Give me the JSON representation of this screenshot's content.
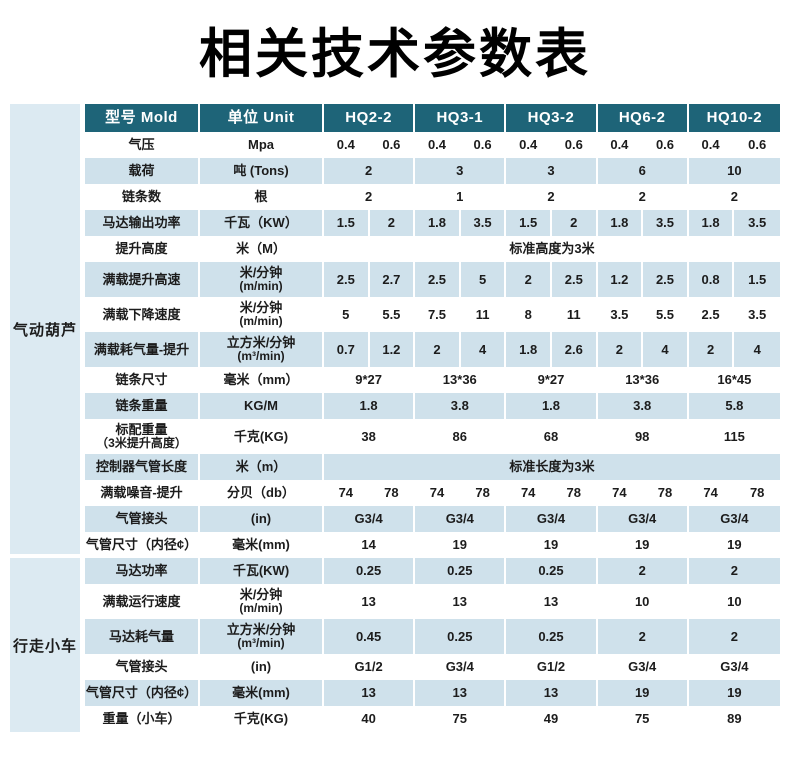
{
  "title": "相关技术参数表",
  "colors": {
    "header_bg": "#1e6478",
    "stripe_bg": "#cfe1eb",
    "sidebar_bg": "#dceaf2",
    "header_text": "#ffffff",
    "text": "#1c1c1c"
  },
  "header": {
    "model_col": "型号 Mold",
    "unit_col": "单位 Unit",
    "models": [
      "HQ2-2",
      "HQ3-1",
      "HQ3-2",
      "HQ6-2",
      "HQ10-2"
    ]
  },
  "sections": [
    {
      "name": "气动葫芦",
      "rows": [
        {
          "label": "气压",
          "unit": "Mpa",
          "type": "split",
          "values": [
            [
              "0.4",
              "0.6"
            ],
            [
              "0.4",
              "0.6"
            ],
            [
              "0.4",
              "0.6"
            ],
            [
              "0.4",
              "0.6"
            ],
            [
              "0.4",
              "0.6"
            ]
          ]
        },
        {
          "label": "载荷",
          "unit": "吨 (Tons)",
          "type": "single",
          "values": [
            "2",
            "3",
            "3",
            "6",
            "10"
          ]
        },
        {
          "label": "链条数",
          "unit": "根",
          "type": "single",
          "values": [
            "2",
            "1",
            "2",
            "2",
            "2"
          ]
        },
        {
          "label": "马达输出功率",
          "unit": "千瓦（KW）",
          "type": "split",
          "values": [
            [
              "1.5",
              "2"
            ],
            [
              "1.8",
              "3.5"
            ],
            [
              "1.5",
              "2"
            ],
            [
              "1.8",
              "3.5"
            ],
            [
              "1.8",
              "3.5"
            ]
          ]
        },
        {
          "label": "提升高度",
          "unit": "米（M）",
          "type": "span",
          "span_text": "标准高度为3米"
        },
        {
          "label": "满载提升高速",
          "unit": "米/分钟",
          "unit2": "(m/min)",
          "tall": true,
          "type": "split",
          "values": [
            [
              "2.5",
              "2.7"
            ],
            [
              "2.5",
              "5"
            ],
            [
              "2",
              "2.5"
            ],
            [
              "1.2",
              "2.5"
            ],
            [
              "0.8",
              "1.5"
            ]
          ]
        },
        {
          "label": "满载下降速度",
          "unit": "米/分钟",
          "unit2": "(m/min)",
          "tall": true,
          "type": "split",
          "values": [
            [
              "5",
              "5.5"
            ],
            [
              "7.5",
              "11"
            ],
            [
              "8",
              "11"
            ],
            [
              "3.5",
              "5.5"
            ],
            [
              "2.5",
              "3.5"
            ]
          ]
        },
        {
          "label": "满载耗气量-提升",
          "unit": "立方米/分钟",
          "unit2": "(m³/min)",
          "tall": true,
          "type": "split",
          "values": [
            [
              "0.7",
              "1.2"
            ],
            [
              "2",
              "4"
            ],
            [
              "1.8",
              "2.6"
            ],
            [
              "2",
              "4"
            ],
            [
              "2",
              "4"
            ]
          ]
        },
        {
          "label": "链条尺寸",
          "unit": "毫米（mm）",
          "type": "single",
          "values": [
            "9*27",
            "13*36",
            "9*27",
            "13*36",
            "16*45"
          ]
        },
        {
          "label": "链条重量",
          "unit": "KG/M",
          "type": "single",
          "values": [
            "1.8",
            "3.8",
            "1.8",
            "3.8",
            "5.8"
          ]
        },
        {
          "label": "标配重量",
          "label2": "（3米提升高度）",
          "unit": "千克(KG)",
          "tall": true,
          "type": "single",
          "values": [
            "38",
            "86",
            "68",
            "98",
            "115"
          ]
        },
        {
          "label": "控制器气管长度",
          "unit": "米（m）",
          "type": "span",
          "span_text": "标准长度为3米"
        },
        {
          "label": "满载噪音-提升",
          "unit": "分贝（db）",
          "type": "split",
          "values": [
            [
              "74",
              "78"
            ],
            [
              "74",
              "78"
            ],
            [
              "74",
              "78"
            ],
            [
              "74",
              "78"
            ],
            [
              "74",
              "78"
            ]
          ]
        },
        {
          "label": "气管接头",
          "unit": "(in)",
          "type": "single",
          "values": [
            "G3/4",
            "G3/4",
            "G3/4",
            "G3/4",
            "G3/4"
          ]
        },
        {
          "label": "气管尺寸（内径¢）",
          "unit": "毫米(mm)",
          "type": "single",
          "values": [
            "14",
            "19",
            "19",
            "19",
            "19"
          ]
        }
      ]
    },
    {
      "name": "行走小车",
      "rows": [
        {
          "label": "马达功率",
          "unit": "千瓦(KW)",
          "type": "single",
          "values": [
            "0.25",
            "0.25",
            "0.25",
            "2",
            "2"
          ]
        },
        {
          "label": "满载运行速度",
          "unit": "米/分钟",
          "unit2": "(m/min)",
          "tall": true,
          "type": "single",
          "values": [
            "13",
            "13",
            "13",
            "10",
            "10"
          ]
        },
        {
          "label": "马达耗气量",
          "unit": "立方米/分钟",
          "unit2": "(m³/min)",
          "tall": true,
          "type": "single",
          "values": [
            "0.45",
            "0.25",
            "0.25",
            "2",
            "2"
          ]
        },
        {
          "label": "气管接头",
          "unit": "(in)",
          "type": "single",
          "values": [
            "G1/2",
            "G3/4",
            "G1/2",
            "G3/4",
            "G3/4"
          ]
        },
        {
          "label": "气管尺寸（内径¢）",
          "unit": "毫米(mm)",
          "type": "single",
          "values": [
            "13",
            "13",
            "13",
            "19",
            "19"
          ]
        },
        {
          "label": "重量（小车）",
          "unit": "千克(KG)",
          "type": "single",
          "values": [
            "40",
            "75",
            "49",
            "75",
            "89"
          ]
        }
      ]
    }
  ]
}
